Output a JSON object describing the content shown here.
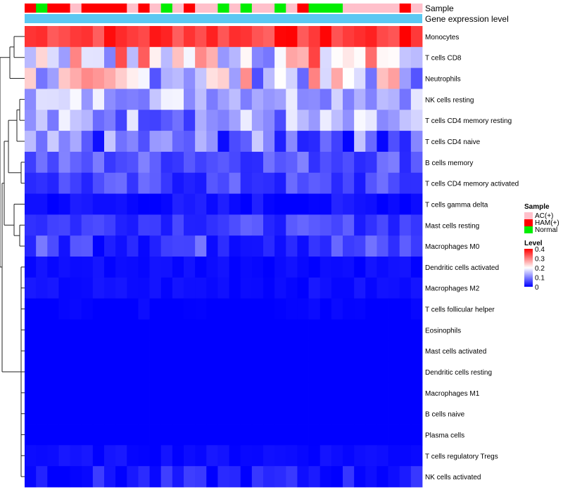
{
  "chart_data": {
    "type": "heatmap",
    "title": "",
    "annotation_labels": {
      "sample": "Sample",
      "level": "Gene expression level"
    },
    "legend": {
      "sample_title": "Sample",
      "sample_entries": [
        {
          "name": "AC(+)",
          "color": "#ffc0cb"
        },
        {
          "name": "HAM(+)",
          "color": "#ff0000"
        },
        {
          "name": "Normal",
          "color": "#00ee00"
        }
      ],
      "level_title": "Level",
      "level_ticks": [
        "0.4",
        "0.3",
        "0.2",
        "0.1",
        "0"
      ],
      "scale": {
        "min": 0,
        "mid": 0.2,
        "max": 0.4,
        "low_color": "#0000ff",
        "mid_color": "#ffffff",
        "high_color": "#ff0000"
      }
    },
    "samples": [
      "HAM(+)",
      "Normal",
      "HAM(+)",
      "HAM(+)",
      "AC(+)",
      "HAM(+)",
      "HAM(+)",
      "HAM(+)",
      "HAM(+)",
      "AC(+)",
      "HAM(+)",
      "AC(+)",
      "Normal",
      "AC(+)",
      "HAM(+)",
      "AC(+)",
      "AC(+)",
      "Normal",
      "AC(+)",
      "Normal",
      "AC(+)",
      "AC(+)",
      "Normal",
      "AC(+)",
      "HAM(+)",
      "Normal",
      "Normal",
      "Normal",
      "AC(+)",
      "AC(+)",
      "AC(+)",
      "AC(+)",
      "AC(+)",
      "HAM(+)",
      "AC(+)"
    ],
    "rows": [
      {
        "name": "Monocytes",
        "base": 0.36,
        "spread": 0.04
      },
      {
        "name": "T cells CD8",
        "base": 0.22,
        "spread": 0.14
      },
      {
        "name": "Neutrophils",
        "base": 0.18,
        "spread": 0.12
      },
      {
        "name": "NK cells resting",
        "base": 0.15,
        "spread": 0.06
      },
      {
        "name": "T cells CD4 memory resting",
        "base": 0.12,
        "spread": 0.08
      },
      {
        "name": "T cells CD4 naive",
        "base": 0.08,
        "spread": 0.08
      },
      {
        "name": "B cells memory",
        "base": 0.07,
        "spread": 0.04
      },
      {
        "name": "T cells CD4 memory activated",
        "base": 0.05,
        "spread": 0.04
      },
      {
        "name": "T cells gamma delta",
        "base": 0.01,
        "spread": 0.02
      },
      {
        "name": "Mast cells resting",
        "base": 0.05,
        "spread": 0.03
      },
      {
        "name": "Macrophages M0",
        "base": 0.05,
        "spread": 0.05
      },
      {
        "name": "Dendritic cells activated",
        "base": 0.01,
        "spread": 0.01
      },
      {
        "name": "Macrophages M2",
        "base": 0.01,
        "spread": 0.01
      },
      {
        "name": "T cells follicular helper",
        "base": 0.0,
        "spread": 0.01
      },
      {
        "name": "Eosinophils",
        "base": 0.0,
        "spread": 0.0
      },
      {
        "name": "Mast cells activated",
        "base": 0.0,
        "spread": 0.0
      },
      {
        "name": "Dendritic cells resting",
        "base": 0.0,
        "spread": 0.0
      },
      {
        "name": "Macrophages M1",
        "base": 0.0,
        "spread": 0.0
      },
      {
        "name": "B cells naive",
        "base": 0.0,
        "spread": 0.0
      },
      {
        "name": "Plasma cells",
        "base": 0.0,
        "spread": 0.0
      },
      {
        "name": "T cells regulatory  Tregs",
        "base": 0.01,
        "spread": 0.01
      },
      {
        "name": "NK cells activated",
        "base": 0.02,
        "spread": 0.03
      }
    ]
  }
}
